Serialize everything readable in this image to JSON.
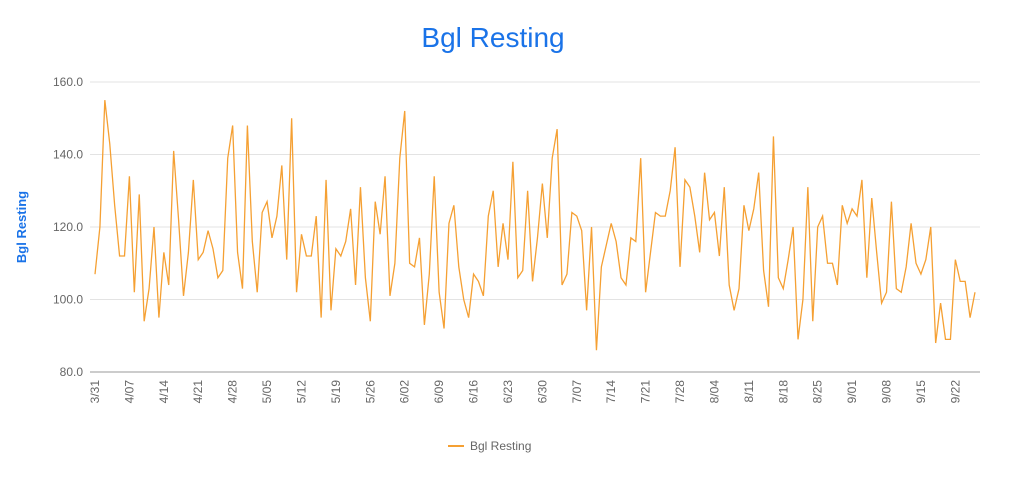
{
  "chart_data": {
    "type": "line",
    "title": "Bgl Resting",
    "y_label": "Bgl Resting",
    "categories": [
      "3/31",
      null,
      null,
      null,
      null,
      null,
      null,
      "4/07",
      null,
      null,
      null,
      null,
      null,
      null,
      "4/14",
      null,
      null,
      null,
      null,
      null,
      null,
      "4/21",
      null,
      null,
      null,
      null,
      null,
      null,
      "4/28",
      null,
      null,
      null,
      null,
      null,
      null,
      "5/05",
      null,
      null,
      null,
      null,
      null,
      null,
      "5/12",
      null,
      null,
      null,
      null,
      null,
      null,
      "5/19",
      null,
      null,
      null,
      null,
      null,
      null,
      "5/26",
      null,
      null,
      null,
      null,
      null,
      null,
      "6/02",
      null,
      null,
      null,
      null,
      null,
      null,
      "6/09",
      null,
      null,
      null,
      null,
      null,
      null,
      "6/16",
      null,
      null,
      null,
      null,
      null,
      null,
      "6/23",
      null,
      null,
      null,
      null,
      null,
      null,
      "6/30",
      null,
      null,
      null,
      null,
      null,
      null,
      "7/07",
      null,
      null,
      null,
      null,
      null,
      null,
      "7/14",
      null,
      null,
      null,
      null,
      null,
      null,
      "7/21",
      null,
      null,
      null,
      null,
      null,
      null,
      "7/28",
      null,
      null,
      null,
      null,
      null,
      null,
      "8/04",
      null,
      null,
      null,
      null,
      null,
      null,
      "8/11",
      null,
      null,
      null,
      null,
      null,
      null,
      "8/18",
      null,
      null,
      null,
      null,
      null,
      null,
      "8/25",
      null,
      null,
      null,
      null,
      null,
      null,
      "9/01",
      null,
      null,
      null,
      null,
      null,
      null,
      "9/08",
      null,
      null,
      null,
      null,
      null,
      null,
      "9/15",
      null,
      null,
      null,
      null,
      null,
      null,
      "9/22",
      null,
      null,
      null,
      null
    ],
    "series": [
      {
        "name": "Bgl Resting",
        "color": "#f5a033",
        "values": [
          107,
          120,
          155,
          143,
          126,
          112,
          112,
          134,
          102,
          129,
          94,
          103,
          120,
          95,
          113,
          104,
          141,
          122,
          101,
          113,
          133,
          111,
          113,
          119,
          114,
          106,
          108,
          139,
          148,
          113,
          103,
          148,
          116,
          102,
          124,
          127,
          117,
          123,
          137,
          111,
          150,
          102,
          118,
          112,
          112,
          123,
          95,
          133,
          97,
          114,
          112,
          116,
          125,
          104,
          131,
          106,
          94,
          127,
          118,
          134,
          101,
          110,
          139,
          152,
          110,
          109,
          117,
          93,
          107,
          134,
          102,
          92,
          121,
          126,
          109,
          100,
          95,
          107,
          105,
          101,
          123,
          130,
          109,
          121,
          111,
          138,
          106,
          108,
          130,
          105,
          117,
          132,
          117,
          139,
          147,
          104,
          107,
          124,
          123,
          119,
          97,
          120,
          86,
          109,
          115,
          121,
          116,
          106,
          104,
          117,
          116,
          139,
          102,
          113,
          124,
          123,
          123,
          130,
          142,
          109,
          133,
          131,
          123,
          113,
          135,
          122,
          124,
          112,
          131,
          104,
          97,
          103,
          126,
          119,
          125,
          135,
          108,
          98,
          145,
          106,
          103,
          111,
          120,
          89,
          100,
          131,
          94,
          120,
          123,
          110,
          110,
          104,
          126,
          121,
          125,
          123,
          133,
          106,
          128,
          113,
          99,
          102,
          127,
          103,
          102,
          109,
          121,
          110,
          107,
          111,
          120,
          88,
          99,
          89,
          89,
          111,
          105,
          105,
          95,
          102
        ]
      }
    ],
    "ylim": [
      80,
      160
    ],
    "yticks": [
      {
        "value": 80,
        "label": "80.0"
      },
      {
        "value": 100,
        "label": "100.0"
      },
      {
        "value": 120,
        "label": "120.0"
      },
      {
        "value": 140,
        "label": "140.0"
      },
      {
        "value": 160,
        "label": "160.0"
      }
    ],
    "grid": true,
    "legend": "bottom"
  }
}
